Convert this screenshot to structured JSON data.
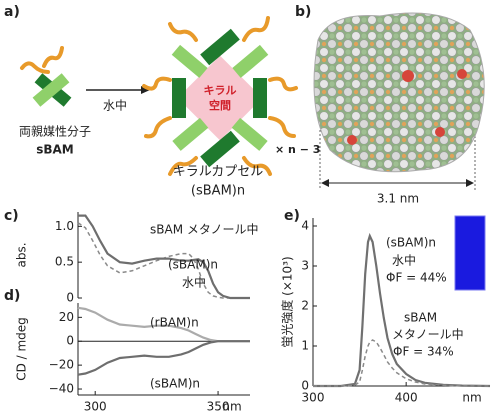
{
  "panel_labels": [
    "a)",
    "b)",
    "c)",
    "d)",
    "e)"
  ],
  "scheme": {
    "monomer_line1": "両親媒性分子",
    "monomer_line2": "sBAM",
    "arrow_label": "水中",
    "cavity_line1": "キラル",
    "cavity_line2": "空間",
    "multiplier": "× n − 3",
    "product_line1": "キラルカプセル",
    "product_line2": "(sBAM)n"
  },
  "structure": {
    "dimension": "3.1 nm"
  },
  "chart_data": [
    {
      "type": "line",
      "ylabel": "abs.",
      "xlim": [
        293,
        363
      ],
      "ylim": [
        0,
        1.2
      ],
      "yticks": [
        0,
        0.5,
        {
          "value": 1,
          "label": "1.0"
        }
      ],
      "x": [
        293,
        296,
        299,
        302,
        305,
        310,
        315,
        320,
        325,
        330,
        335,
        338,
        340,
        342,
        344,
        346,
        348,
        350,
        352,
        355,
        360,
        363
      ],
      "series": [
        {
          "name": "sBAM メタノール中",
          "color": "#8a8a8a",
          "dashed": true,
          "values": [
            1.05,
            0.98,
            0.8,
            0.6,
            0.45,
            0.35,
            0.38,
            0.45,
            0.52,
            0.58,
            0.62,
            0.62,
            0.55,
            0.4,
            0.2,
            0.08,
            0.03,
            0.01,
            0,
            0,
            0,
            0
          ]
        },
        {
          "name": "(sBAM)n",
          "color": "#6e6e6e",
          "dashed": false,
          "values": [
            1.15,
            1.15,
            1.0,
            0.8,
            0.62,
            0.5,
            0.48,
            0.52,
            0.55,
            0.55,
            0.52,
            0.52,
            0.53,
            0.54,
            0.5,
            0.38,
            0.2,
            0.08,
            0.03,
            0,
            0,
            0
          ]
        }
      ],
      "annotations": [
        "水中"
      ]
    },
    {
      "type": "line",
      "ylabel": "CD / mdeg",
      "xlabel": "nm",
      "xlim": [
        293,
        363
      ],
      "xticks": [
        300,
        350
      ],
      "ylim": [
        -45,
        32
      ],
      "yticks": [
        {
          "value": -40,
          "label": "−40"
        },
        {
          "value": -20,
          "label": "−20"
        },
        0,
        20
      ],
      "x": [
        293,
        296,
        300,
        305,
        310,
        315,
        320,
        325,
        330,
        335,
        338,
        341,
        344,
        347,
        350,
        355,
        363
      ],
      "series": [
        {
          "name": "(rBAM)n",
          "color": "#ababab",
          "dashed": false,
          "values": [
            28,
            27,
            24,
            18,
            14,
            13,
            12,
            13,
            13,
            11,
            9,
            6,
            3,
            1,
            0,
            0,
            0
          ]
        },
        {
          "name": "(sBAM)n",
          "color": "#6e6e6e",
          "dashed": false,
          "values": [
            -28,
            -27,
            -24,
            -18,
            -14,
            -13,
            -12,
            -13,
            -13,
            -11,
            -9,
            -6,
            -3,
            -1,
            0,
            0,
            0
          ]
        }
      ],
      "annotations": []
    },
    {
      "type": "line",
      "ylabel": "蛍光強度 (×10³)",
      "xlabel": "nm",
      "xlim": [
        300,
        490
      ],
      "xticks": [
        300,
        400
      ],
      "ylim": [
        0,
        4.2
      ],
      "yticks": [
        0,
        1,
        2,
        3,
        4
      ],
      "x": [
        300,
        330,
        345,
        350,
        353,
        356,
        359,
        361,
        364,
        368,
        372,
        376,
        380,
        385,
        390,
        400,
        410,
        420,
        440,
        460,
        490
      ],
      "series": [
        {
          "name": "(sBAM)n",
          "color": "#707070",
          "dashed": false,
          "values": [
            0,
            0,
            0.05,
            0.4,
            1.5,
            2.8,
            3.6,
            3.75,
            3.6,
            3.0,
            2.3,
            1.7,
            1.2,
            0.8,
            0.55,
            0.3,
            0.15,
            0.08,
            0.03,
            0.01,
            0
          ]
        },
        {
          "name": "sBAM",
          "color": "#8a8a8a",
          "dashed": true,
          "values": [
            0,
            0,
            0.02,
            0.1,
            0.4,
            0.75,
            1.0,
            1.1,
            1.15,
            1.1,
            0.95,
            0.78,
            0.6,
            0.45,
            0.33,
            0.18,
            0.1,
            0.05,
            0.02,
            0,
            0
          ]
        }
      ],
      "annotations": [
        "水中",
        "ΦF = 44%",
        "メタノール中",
        "ΦF = 34%"
      ]
    }
  ]
}
